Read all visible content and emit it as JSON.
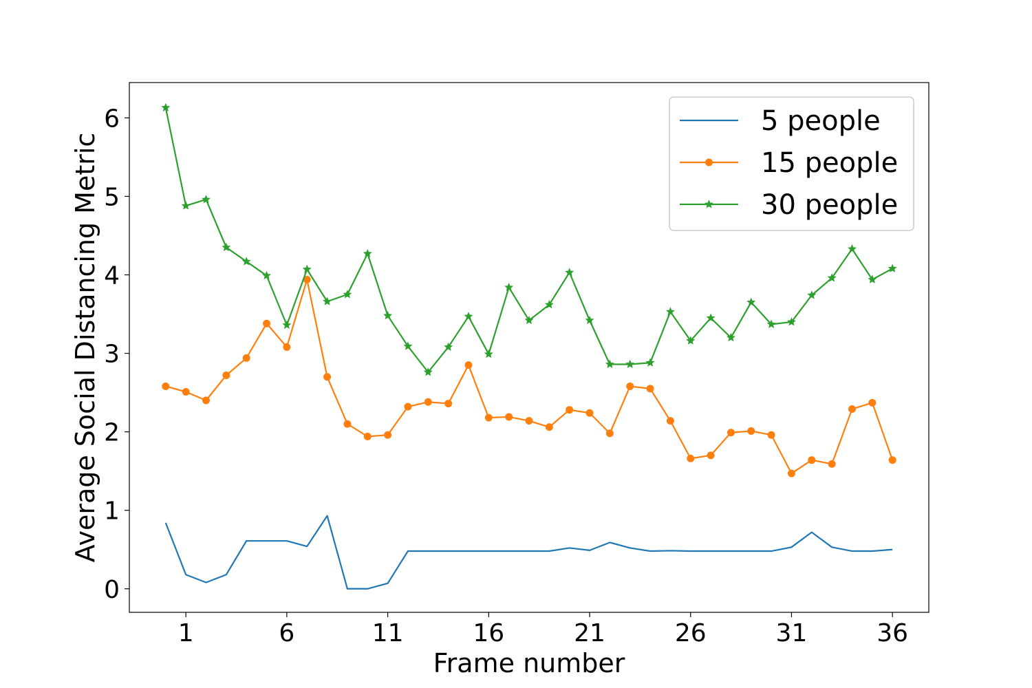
{
  "chart_data": {
    "type": "line",
    "title": "",
    "xlabel": "Frame number",
    "ylabel": "Average Social Distancing Metric",
    "x": [
      0,
      1,
      2,
      3,
      4,
      5,
      6,
      7,
      8,
      9,
      10,
      11,
      12,
      13,
      14,
      15,
      16,
      17,
      18,
      19,
      20,
      21,
      22,
      23,
      24,
      25,
      26,
      27,
      28,
      29,
      30,
      31,
      32,
      33,
      34,
      35,
      36
    ],
    "xticks": [
      1,
      6,
      11,
      16,
      21,
      26,
      31,
      36
    ],
    "yticks": [
      0,
      1,
      2,
      3,
      4,
      5,
      6
    ],
    "xlim": [
      -1.8,
      37.8
    ],
    "ylim": [
      -0.3,
      6.45
    ],
    "grid": false,
    "legend_position": "top-right",
    "series": [
      {
        "name": "5 people",
        "color": "#1f77b4",
        "marker": "none",
        "values": [
          0.84,
          0.18,
          0.08,
          0.18,
          0.61,
          0.61,
          0.61,
          0.54,
          0.93,
          0.0,
          0.0,
          0.07,
          0.48,
          0.48,
          0.48,
          0.48,
          0.48,
          0.48,
          0.48,
          0.48,
          0.52,
          0.49,
          0.59,
          0.52,
          0.48,
          0.485,
          0.48,
          0.48,
          0.48,
          0.48,
          0.48,
          0.53,
          0.72,
          0.53,
          0.48,
          0.48,
          0.5
        ]
      },
      {
        "name": "15 people",
        "color": "#ff7f0e",
        "marker": "circle",
        "values": [
          2.58,
          2.51,
          2.4,
          2.72,
          2.94,
          3.38,
          3.08,
          3.94,
          2.7,
          2.1,
          1.94,
          1.96,
          2.32,
          2.38,
          2.36,
          2.85,
          2.18,
          2.19,
          2.14,
          2.06,
          2.28,
          2.24,
          1.98,
          2.58,
          2.55,
          2.14,
          1.66,
          1.7,
          1.99,
          2.01,
          1.96,
          1.47,
          1.64,
          1.59,
          2.29,
          2.37,
          1.64
        ]
      },
      {
        "name": "30 people",
        "color": "#2ca02c",
        "marker": "star",
        "values": [
          6.13,
          4.88,
          4.96,
          4.35,
          4.17,
          3.99,
          3.36,
          4.07,
          3.66,
          3.75,
          4.27,
          3.48,
          3.09,
          2.76,
          3.08,
          3.47,
          2.99,
          3.84,
          3.42,
          3.62,
          4.03,
          3.42,
          2.86,
          2.86,
          2.88,
          3.53,
          3.16,
          3.45,
          3.2,
          3.65,
          3.37,
          3.4,
          3.74,
          3.96,
          4.33,
          3.94,
          4.08
        ]
      }
    ]
  }
}
